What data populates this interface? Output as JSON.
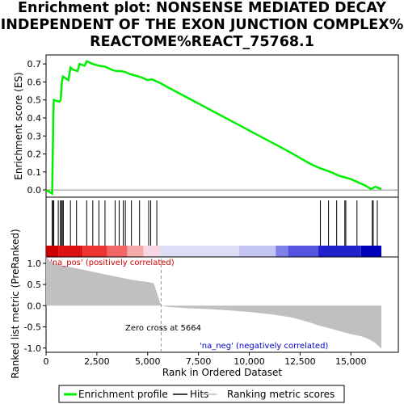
{
  "title_lines": [
    "Enrichment plot: NONSENSE MEDIATED DECAY",
    "INDEPENDENT OF THE EXON JUNCTION COMPLEX%",
    "REACTOME%REACT_75768.1"
  ],
  "chart_data": {
    "type": "line",
    "es_panel": {
      "ylabel": "Enrichment score (ES)",
      "ylim": [
        -0.04,
        0.75
      ],
      "yticks": [
        0.0,
        0.1,
        0.2,
        0.3,
        0.4,
        0.5,
        0.6,
        0.7
      ],
      "ytick_labels": [
        "0.0",
        "0.1",
        "0.2",
        "0.3",
        "0.4",
        "0.5",
        "0.6",
        "0.7"
      ],
      "es_curve": {
        "x": [
          0,
          300,
          330,
          360,
          380,
          650,
          720,
          780,
          830,
          1100,
          1200,
          1300,
          1550,
          1650,
          1900,
          2000,
          2300,
          2600,
          2900,
          3100,
          3300,
          3500,
          3700,
          3900,
          4100,
          4400,
          4700,
          5000,
          5200,
          5600,
          6000,
          7000,
          8000,
          9000,
          10000,
          11000,
          12000,
          13000,
          13500,
          14000,
          14400,
          14700,
          15000,
          15300,
          15700,
          16000,
          16200,
          16500
        ],
        "y": [
          0.0,
          -0.02,
          0.2,
          0.42,
          0.5,
          0.49,
          0.5,
          0.6,
          0.63,
          0.61,
          0.68,
          0.67,
          0.66,
          0.7,
          0.69,
          0.715,
          0.7,
          0.69,
          0.685,
          0.675,
          0.665,
          0.66,
          0.66,
          0.655,
          0.645,
          0.635,
          0.625,
          0.61,
          0.615,
          0.595,
          0.57,
          0.51,
          0.45,
          0.39,
          0.33,
          0.27,
          0.21,
          0.145,
          0.12,
          0.1,
          0.08,
          0.07,
          0.06,
          0.045,
          0.025,
          0.005,
          0.018,
          0.005
        ]
      }
    },
    "hits": [
      300,
      350,
      380,
      600,
      700,
      760,
      800,
      850,
      1200,
      1500,
      2000,
      2300,
      2600,
      2900,
      3400,
      3600,
      3800,
      3900,
      4200,
      4600,
      5050,
      5150,
      5450,
      13500,
      13900,
      14300,
      14700,
      14750,
      15300,
      16050,
      16100,
      16300
    ],
    "heat_colors": [
      "#cc0000",
      "#dd1111",
      "#ee3333",
      "#f26666",
      "#f6aaaa",
      "#f7d6e6",
      "#ddddf5",
      "#c4c4f2",
      "#8080e8",
      "#5555e0",
      "#2222cc",
      "#0000bb"
    ],
    "heat_bounds": [
      0,
      600,
      1800,
      3000,
      4000,
      4800,
      5600,
      9500,
      11300,
      11900,
      13400,
      15500,
      16500
    ],
    "metric_panel": {
      "ylabel": "Ranked list metric (PreRanked)",
      "xlabel": "Rank in Ordered Dataset",
      "ylim": [
        -1.1,
        1.15
      ],
      "yticks": [
        -1.0,
        -0.5,
        0.0,
        0.5,
        1.0
      ],
      "ytick_labels": [
        "-1.0",
        "-0.5",
        "0.0",
        "0.5",
        "1.0"
      ],
      "xlim": [
        0,
        16500
      ],
      "xticks": [
        0,
        2500,
        5000,
        7500,
        10000,
        12500,
        15000
      ],
      "xtick_labels": [
        "0",
        "2,500",
        "5,000",
        "7,500",
        "10,000",
        "12,500",
        "15,000"
      ],
      "metric_curve": {
        "x": [
          0,
          200,
          500,
          1000,
          1500,
          2000,
          2500,
          3000,
          3500,
          4000,
          4500,
          5000,
          5300,
          5664,
          6000,
          7000,
          8000,
          9000,
          10000,
          11000,
          12000,
          12500,
          13000,
          13500,
          14000,
          14500,
          15000,
          15500,
          15800,
          16000,
          16200,
          16400,
          16500
        ],
        "y": [
          1.15,
          1.05,
          0.98,
          0.93,
          0.88,
          0.83,
          0.78,
          0.73,
          0.68,
          0.63,
          0.59,
          0.56,
          0.53,
          0.0,
          -0.03,
          -0.06,
          -0.08,
          -0.11,
          -0.15,
          -0.2,
          -0.27,
          -0.33,
          -0.4,
          -0.48,
          -0.54,
          -0.61,
          -0.67,
          -0.72,
          -0.77,
          -0.82,
          -0.88,
          -0.97,
          -1.02
        ]
      },
      "zero_cross_label": "Zero cross at 5664",
      "zero_cross": 5664,
      "pos_label": "'na_pos' (positively correlated)",
      "neg_label": "'na_neg' (negatively correlated)"
    },
    "legend": [
      {
        "label": "Enrichment profile",
        "color": "#00ee00"
      },
      {
        "label": "Hits",
        "color": "#000000"
      },
      {
        "label": "Ranking metric scores",
        "color": "#bbbbbb"
      }
    ]
  }
}
